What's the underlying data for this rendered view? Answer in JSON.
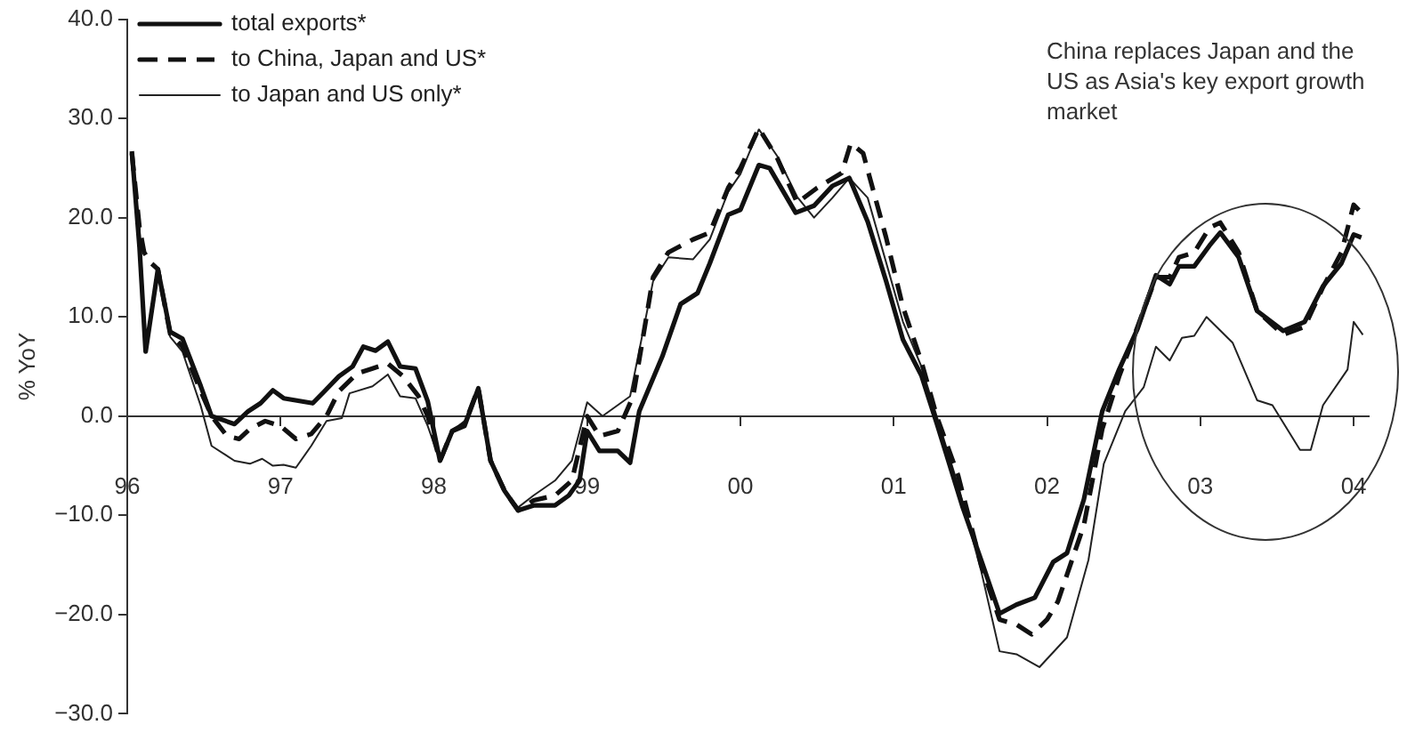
{
  "chart_data": {
    "type": "line",
    "ylabel": "% YoY",
    "xlim": [
      1996,
      2004.1
    ],
    "xticks": [
      {
        "value": 1996,
        "label": "96"
      },
      {
        "value": 1997,
        "label": "97"
      },
      {
        "value": 1998,
        "label": "98"
      },
      {
        "value": 1999,
        "label": "99"
      },
      {
        "value": 2000,
        "label": "00"
      },
      {
        "value": 2001,
        "label": "01"
      },
      {
        "value": 2002,
        "label": "02"
      },
      {
        "value": 2003,
        "label": "03"
      },
      {
        "value": 2004,
        "label": "04"
      }
    ],
    "ylim": [
      -30,
      40
    ],
    "yticks": [
      {
        "value": -30,
        "label": "−30.0"
      },
      {
        "value": -20,
        "label": "−20.0"
      },
      {
        "value": -10,
        "label": "−10.0"
      },
      {
        "value": 0,
        "label": "0.0"
      },
      {
        "value": 10,
        "label": "10.0"
      },
      {
        "value": 20,
        "label": "20.0"
      },
      {
        "value": 30,
        "label": "30.0"
      },
      {
        "value": 40,
        "label": "40.0"
      }
    ],
    "legend": "top left",
    "marker": "none",
    "annotations": [
      "China replaces Japan and the US as Asia's key export growth market"
    ],
    "series": [
      {
        "name": "total exports*",
        "color": "#111111",
        "line_style": "solid",
        "x": [
          1996.03,
          1996.08,
          1996.12,
          1996.2,
          1996.28,
          1996.36,
          1996.48,
          1996.55,
          1996.7,
          1996.79,
          1996.87,
          1996.95,
          1997.02,
          1997.21,
          1997.28,
          1997.38,
          1997.47,
          1997.54,
          1997.62,
          1997.7,
          1997.78,
          1997.88,
          1997.96,
          1998.04,
          1998.12,
          1998.2,
          1998.29,
          1998.37,
          1998.46,
          1998.55,
          1998.65,
          1998.79,
          1998.88,
          1998.95,
          1999.0,
          1999.08,
          1999.2,
          1999.28,
          1999.34,
          1999.49,
          1999.61,
          1999.72,
          1999.8,
          1999.92,
          2000.0,
          2000.12,
          2000.19,
          2000.36,
          2000.48,
          2000.6,
          2000.71,
          2000.83,
          2000.95,
          2001.06,
          2001.18,
          2001.28,
          2001.45,
          2001.57,
          2001.69,
          2001.8,
          2001.92,
          2002.04,
          2002.13,
          2002.24,
          2002.36,
          2002.47,
          2002.59,
          2002.71,
          2002.8,
          2002.86,
          2002.96,
          2003.06,
          2003.13,
          2003.25,
          2003.37,
          2003.54,
          2003.68,
          2003.8,
          2003.92,
          2004.0,
          2004.05
        ],
        "values": [
          26.7,
          17,
          6.5,
          14.8,
          8.5,
          7.8,
          3,
          0,
          -0.8,
          0.5,
          1.3,
          2.6,
          1.8,
          1.3,
          2.4,
          4,
          5,
          7,
          6.6,
          7.5,
          5,
          4.8,
          1.5,
          -4.5,
          -1.5,
          -1,
          2.8,
          -4.5,
          -7.5,
          -9.5,
          -9,
          -9,
          -8,
          -6.5,
          -1.5,
          -3.5,
          -3.5,
          -4.7,
          0.5,
          6,
          11.3,
          12.4,
          15.4,
          20.3,
          20.8,
          25.3,
          25,
          20.5,
          21.2,
          23.2,
          24,
          19.6,
          13.6,
          7.7,
          4.1,
          -0.7,
          -9.2,
          -14.5,
          -19.9,
          -19,
          -18.3,
          -14.7,
          -13.8,
          -8.4,
          0.5,
          4.7,
          8.8,
          14.2,
          13.3,
          15.1,
          15.1,
          17.2,
          18.5,
          16,
          10.6,
          8.6,
          9.5,
          13.1,
          15.4,
          18.3,
          18
        ]
      },
      {
        "name": "to China, Japan and US*",
        "color": "#111111",
        "line_style": "dashed",
        "x": [
          1996.03,
          1996.08,
          1996.11,
          1996.15,
          1996.2,
          1996.28,
          1996.36,
          1996.48,
          1996.55,
          1996.65,
          1996.73,
          1996.8,
          1996.9,
          1997.0,
          1997.1,
          1997.2,
          1997.3,
          1997.38,
          1997.5,
          1997.6,
          1997.7,
          1997.8,
          1997.9,
          1997.96,
          1998.04,
          1998.12,
          1998.2,
          1998.29,
          1998.37,
          1998.46,
          1998.55,
          1998.65,
          1998.79,
          1998.9,
          1999.0,
          1999.08,
          1999.2,
          1999.3,
          1999.43,
          1999.53,
          1999.69,
          1999.8,
          1999.92,
          2000.0,
          2000.12,
          2000.24,
          2000.37,
          2000.5,
          2000.66,
          2000.72,
          2000.8,
          2000.95,
          2001.06,
          2001.18,
          2001.28,
          2001.42,
          2001.57,
          2001.69,
          2001.8,
          2001.9,
          2002.0,
          2002.07,
          2002.24,
          2002.36,
          2002.47,
          2002.59,
          2002.71,
          2002.8,
          2002.86,
          2002.96,
          2003.06,
          2003.13,
          2003.25,
          2003.37,
          2003.54,
          2003.68,
          2003.8,
          2003.92,
          2004.0,
          2004.05
        ],
        "values": [
          26.5,
          19,
          16.5,
          15.5,
          14.8,
          8.3,
          7,
          2.5,
          0,
          -2,
          -2.3,
          -1.3,
          -0.5,
          -1,
          -2.3,
          -1.8,
          0,
          2.5,
          4.3,
          4.8,
          5.3,
          4,
          2,
          0,
          -4.5,
          -1.5,
          -0.8,
          2.8,
          -4.5,
          -7.5,
          -9.5,
          -8.5,
          -8,
          -6.5,
          0,
          -2,
          -1.5,
          2,
          14,
          16.5,
          17.8,
          18.5,
          23,
          25,
          29,
          26,
          21.5,
          23,
          24.5,
          27.5,
          26.5,
          18,
          11,
          5.5,
          0,
          -6,
          -15,
          -20.5,
          -21,
          -22,
          -20.5,
          -18.7,
          -11,
          -1.3,
          4,
          9,
          14,
          14,
          16,
          16.5,
          19,
          19.5,
          16.5,
          10.6,
          8.2,
          9,
          13,
          16.5,
          21.3,
          20.5
        ]
      },
      {
        "name": "to Japan and US only*",
        "color": "#222222",
        "line_style": "solid",
        "x": [
          1996.03,
          1996.08,
          1996.12,
          1996.2,
          1996.28,
          1996.36,
          1996.48,
          1996.55,
          1996.7,
          1996.8,
          1996.88,
          1996.95,
          1997.02,
          1997.1,
          1997.2,
          1997.3,
          1997.4,
          1997.45,
          1997.6,
          1997.7,
          1997.78,
          1997.88,
          1997.96,
          1998.04,
          1998.12,
          1998.2,
          1998.29,
          1998.37,
          1998.46,
          1998.55,
          1998.65,
          1998.79,
          1998.9,
          1999.0,
          1999.1,
          1999.28,
          1999.43,
          1999.53,
          1999.69,
          1999.8,
          1999.92,
          2000.0,
          2000.12,
          2000.24,
          2000.37,
          2000.48,
          2000.6,
          2000.71,
          2000.83,
          2000.95,
          2001.06,
          2001.18,
          2001.28,
          2001.42,
          2001.57,
          2001.69,
          2001.8,
          2001.95,
          2002.13,
          2002.27,
          2002.37,
          2002.51,
          2002.63,
          2002.71,
          2002.8,
          2002.88,
          2002.96,
          2003.04,
          2003.21,
          2003.37,
          2003.47,
          2003.65,
          2003.72,
          2003.8,
          2003.96,
          2004.0,
          2004.06
        ],
        "values": [
          26,
          19,
          7,
          14.5,
          8,
          6.5,
          1,
          -3,
          -4.5,
          -4.8,
          -4.3,
          -5,
          -4.9,
          -5.2,
          -3,
          -0.5,
          -0.2,
          2.3,
          3,
          4.2,
          2,
          1.8,
          -1,
          -4.5,
          -1.5,
          -0.5,
          2.8,
          -4.5,
          -7.5,
          -9.2,
          -8,
          -6.5,
          -4.5,
          1.4,
          0,
          2,
          13.6,
          16,
          15.8,
          17.8,
          22.6,
          24.4,
          28.9,
          26.2,
          22.1,
          20,
          22,
          24,
          22,
          15.5,
          9.5,
          5,
          0,
          -7,
          -15.6,
          -23.7,
          -24,
          -25.3,
          -22.3,
          -14.5,
          -4.8,
          0.5,
          2.9,
          7,
          5.6,
          7.9,
          8.1,
          10,
          7.4,
          1.6,
          1.1,
          -3.4,
          -3.4,
          1.1,
          4.7,
          9.5,
          8.2
        ]
      }
    ]
  }
}
